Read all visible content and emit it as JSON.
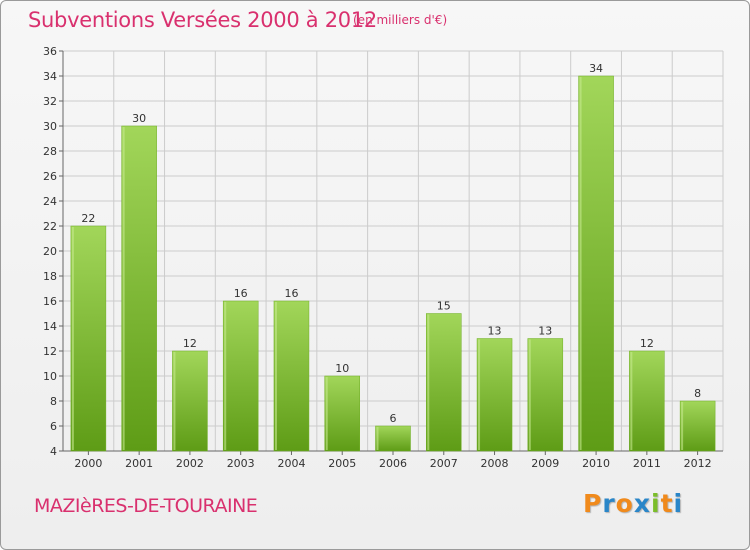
{
  "header": {
    "title": "Subventions Versées 2000 à 2012",
    "unit_note": "(en milliers d'€)"
  },
  "footer": {
    "commune": "MAZIèRES-DE-TOURAINE",
    "logo_text": "Proxiti"
  },
  "colors": {
    "accent": "#d9306e",
    "bar_light": "#a2d65a",
    "bar_dark": "#5e9c16",
    "grid": "#cccccc",
    "logo_letters": [
      "#f08a1c",
      "#2a86c8",
      "#f08a1c",
      "#2a86c8",
      "#7bbd2a",
      "#f08a1c",
      "#2a86c8"
    ]
  },
  "chart_data": {
    "type": "bar",
    "title": "Subventions Versées 2000 à 2012",
    "subtitle": "(en milliers d'€)",
    "categories": [
      "2000",
      "2001",
      "2002",
      "2003",
      "2004",
      "2005",
      "2006",
      "2007",
      "2008",
      "2009",
      "2010",
      "2011",
      "2012"
    ],
    "values": [
      22,
      30,
      12,
      16,
      16,
      10,
      6,
      15,
      13,
      13,
      34,
      12,
      8
    ],
    "data_labels": [
      "22",
      "30",
      "12",
      "16",
      "16",
      "10",
      "6",
      "15",
      "13",
      "13",
      "34",
      "12",
      "8"
    ],
    "ylim": [
      4,
      36
    ],
    "yticks": [
      4,
      6,
      8,
      10,
      12,
      14,
      16,
      18,
      20,
      22,
      24,
      26,
      28,
      30,
      32,
      34,
      36
    ],
    "ytick_labels": [
      "4",
      "6",
      "8",
      "10",
      "12",
      "14",
      "16",
      "18",
      "20",
      "22",
      "24",
      "26",
      "28",
      "30",
      "32",
      "34",
      "36"
    ],
    "grid": true,
    "xlabel": "",
    "ylabel": ""
  }
}
